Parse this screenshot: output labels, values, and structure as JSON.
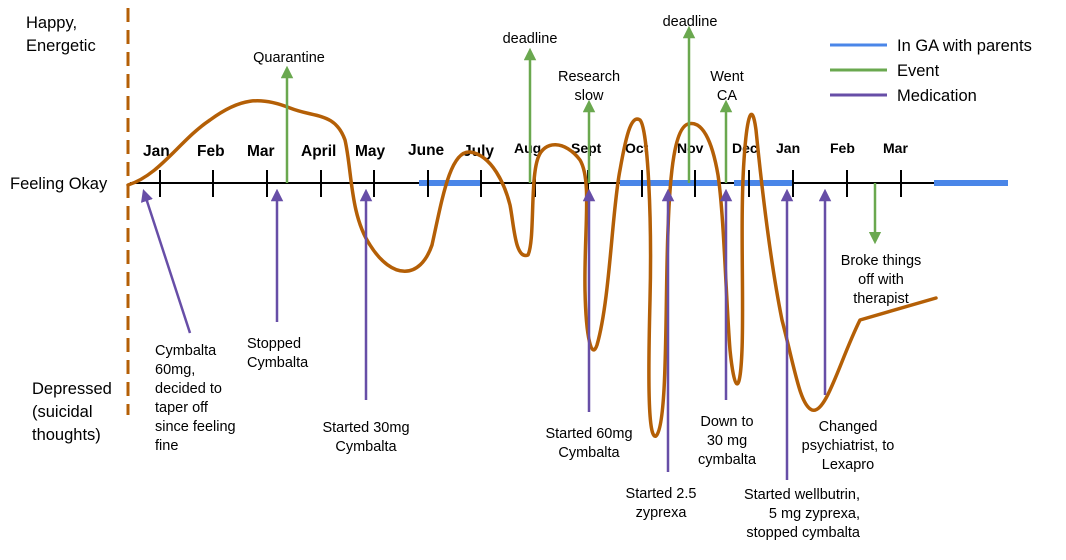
{
  "y_axis": {
    "top": [
      "Happy,",
      "Energetic"
    ],
    "middle": "Feeling Okay",
    "bottom": [
      "Depressed",
      "(suicidal",
      "thoughts)"
    ]
  },
  "months": [
    "Jan",
    "Feb",
    "Mar",
    "April",
    "May",
    "June",
    "July",
    "Aug",
    "Sept",
    "Oct",
    "Nov",
    "Dec",
    "Jan",
    "Feb",
    "Mar"
  ],
  "legend": [
    {
      "label": "In GA with parents",
      "color": "#4a86e8"
    },
    {
      "label": "Event",
      "color": "#6aa84f"
    },
    {
      "label": "Medication",
      "color": "#674ea7"
    }
  ],
  "events": [
    {
      "id": "quarantine",
      "lines": [
        "Quarantine"
      ]
    },
    {
      "id": "deadline1",
      "lines": [
        "deadline"
      ]
    },
    {
      "id": "research",
      "lines": [
        "Research",
        "slow"
      ]
    },
    {
      "id": "deadline2",
      "lines": [
        "deadline"
      ]
    },
    {
      "id": "went-ca",
      "lines": [
        "Went",
        "CA"
      ]
    },
    {
      "id": "therapist",
      "lines": [
        "Broke things",
        "off with",
        "therapist"
      ]
    }
  ],
  "medications": [
    {
      "id": "cymbalta60",
      "lines": [
        "Cymbalta",
        "60mg,",
        "decided to",
        "taper off",
        "since feeling",
        "fine"
      ]
    },
    {
      "id": "stopped",
      "lines": [
        "Stopped",
        "Cymbalta"
      ]
    },
    {
      "id": "started30",
      "lines": [
        "Started 30mg",
        "Cymbalta"
      ]
    },
    {
      "id": "started60",
      "lines": [
        "Started 60mg",
        "Cymbalta"
      ]
    },
    {
      "id": "zyprexa25",
      "lines": [
        "Started 2.5",
        "zyprexa"
      ]
    },
    {
      "id": "down30",
      "lines": [
        "Down to",
        "30 mg",
        "cymbalta"
      ]
    },
    {
      "id": "wellbutrin",
      "lines": [
        "Started wellbutrin,",
        "5 mg zyprexa,",
        "stopped cymbalta"
      ]
    },
    {
      "id": "lexapro",
      "lines": [
        "Changed",
        "psychiatrist, to",
        "Lexapro"
      ]
    }
  ],
  "colors": {
    "mood": "#b45f06",
    "ga": "#4a86e8",
    "event": "#6aa84f",
    "medication": "#674ea7",
    "axis": "#000000"
  }
}
